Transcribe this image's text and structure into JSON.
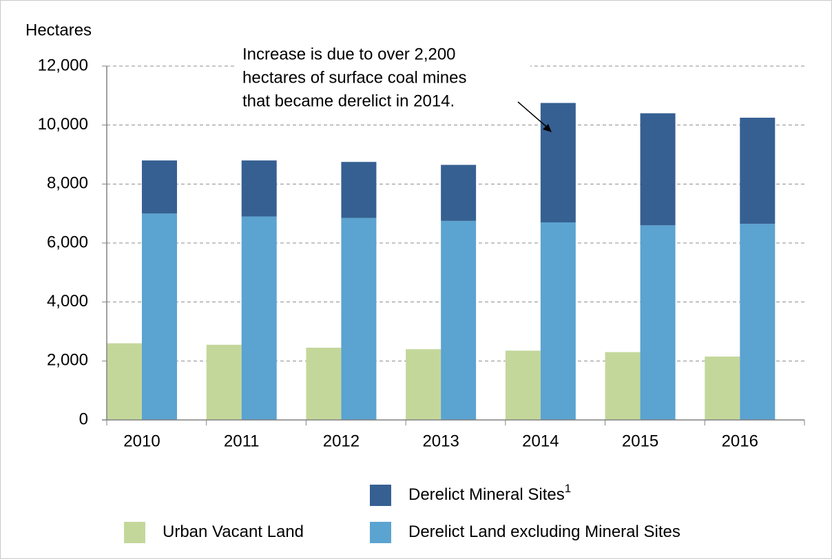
{
  "chart_data": {
    "type": "bar",
    "y_axis_label": "Hectares",
    "categories": [
      "2010",
      "2011",
      "2012",
      "2013",
      "2014",
      "2015",
      "2016"
    ],
    "series": [
      {
        "name": "Urban Vacant Land",
        "color": "#c4d79b",
        "group": 0,
        "values": [
          2600,
          2550,
          2450,
          2400,
          2350,
          2300,
          2150
        ]
      },
      {
        "name": "Derelict Land excluding Mineral Sites",
        "color": "#5ba3d0",
        "group": 1,
        "values": [
          7000,
          6900,
          6850,
          6750,
          6700,
          6600,
          6650
        ]
      },
      {
        "name": "Derelict Mineral Sites",
        "footnote_marker": "1",
        "color": "#366092",
        "group": 1,
        "values": [
          1800,
          1900,
          1900,
          1900,
          4050,
          3800,
          3600
        ]
      }
    ],
    "annotation": [
      "Increase is due to over 2,200",
      "hectares of surface coal mines",
      "that became derelict in 2014."
    ],
    "ylim": [
      0,
      12000
    ],
    "yticks": [
      0,
      {
        "value": 2000,
        "label": "2,000"
      },
      {
        "value": 4000,
        "label": "4,000"
      },
      {
        "value": 6000,
        "label": "6,000"
      },
      {
        "value": 8000,
        "label": "8,000"
      },
      {
        "value": 10000,
        "label": "10,000"
      },
      {
        "value": 12000,
        "label": "12,000"
      }
    ],
    "grid": true
  }
}
